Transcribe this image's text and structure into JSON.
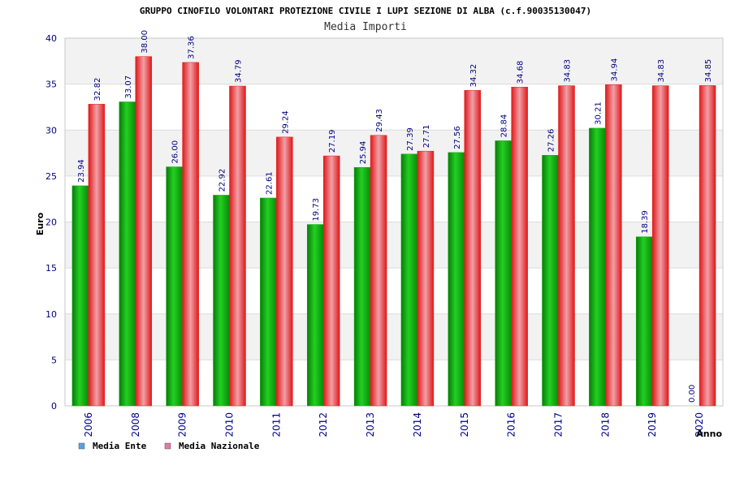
{
  "colors": {
    "ente_bar": "#10b010",
    "nazionale_bar": "#e02020",
    "ente_legend": "#5aa0e6",
    "nazionale_legend": "#e07aa8",
    "axis_text": "#000080",
    "band": "#f2f2f2"
  },
  "chart_data": {
    "type": "bar",
    "title": "GRUPPO CINOFILO VOLONTARI PROTEZIONE CIVILE I LUPI SEZIONE DI ALBA (c.f.90035130047)",
    "subtitle": "Media Importi",
    "xlabel": "Anno",
    "ylabel": "Euro",
    "ylim": [
      0,
      40
    ],
    "yticks": [
      0,
      5,
      10,
      15,
      20,
      25,
      30,
      35,
      40
    ],
    "grid": true,
    "legend_position": "bottom-left",
    "categories": [
      "2006",
      "2008",
      "2009",
      "2010",
      "2011",
      "2012",
      "2013",
      "2014",
      "2015",
      "2016",
      "2017",
      "2018",
      "2019",
      "2020"
    ],
    "series": [
      {
        "name": "Media Ente",
        "values": [
          23.94,
          33.07,
          26.0,
          22.92,
          22.61,
          19.73,
          25.94,
          27.39,
          27.56,
          28.84,
          27.26,
          30.21,
          18.39,
          0.0
        ],
        "labels": [
          "23.94",
          "33.07",
          "26.00",
          "22.92",
          "22.61",
          "19.73",
          "25.94",
          "27.39",
          "27.56",
          "28.84",
          "27.26",
          "30.21",
          "18.39",
          "0.00"
        ]
      },
      {
        "name": "Media Nazionale",
        "values": [
          32.82,
          38.0,
          37.36,
          34.79,
          29.24,
          27.19,
          29.43,
          27.71,
          34.32,
          34.68,
          34.83,
          34.94,
          34.83,
          34.85
        ],
        "labels": [
          "32.82",
          "38.00",
          "37.36",
          "34.79",
          "29.24",
          "27.19",
          "29.43",
          "27.71",
          "34.32",
          "34.68",
          "34.83",
          "34.94",
          "34.83",
          "34.85"
        ]
      }
    ]
  }
}
